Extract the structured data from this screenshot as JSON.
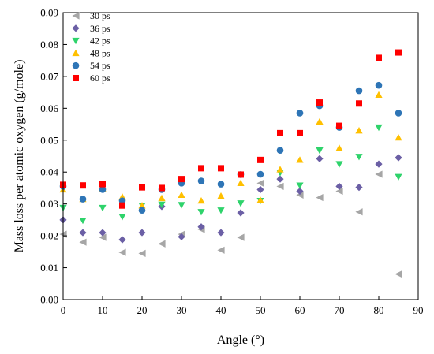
{
  "chart_data": {
    "type": "scatter",
    "title": "",
    "xlabel": "Angle (°)",
    "ylabel": "Mass loss per atomic oxygen (g/mole)",
    "xlim": [
      0,
      90
    ],
    "ylim": [
      0,
      0.09
    ],
    "xticks": [
      "0",
      "10",
      "20",
      "30",
      "40",
      "50",
      "60",
      "70",
      "80",
      "90"
    ],
    "yticks": [
      "0.00",
      "0.01",
      "0.02",
      "0.03",
      "0.04",
      "0.05",
      "0.06",
      "0.07",
      "0.08",
      "0.09"
    ],
    "grid": false,
    "legend_position": "top-left",
    "x": [
      0,
      5,
      10,
      15,
      20,
      25,
      30,
      35,
      40,
      45,
      50,
      55,
      60,
      65,
      70,
      75,
      80,
      85
    ],
    "series": [
      {
        "name": "30 ps",
        "marker": "triangle-left",
        "color": "#a6a6a6",
        "values": [
          0.0205,
          0.018,
          0.0195,
          0.0148,
          0.0145,
          0.0175,
          0.0205,
          0.022,
          0.0155,
          0.0195,
          0.0365,
          0.0355,
          0.0328,
          0.032,
          0.034,
          0.0275,
          0.0393,
          0.008
        ]
      },
      {
        "name": "36 ps",
        "marker": "diamond",
        "color": "#6b5fa5",
        "values": [
          0.025,
          0.021,
          0.021,
          0.0188,
          0.021,
          0.0292,
          0.0197,
          0.0228,
          0.021,
          0.0272,
          0.0345,
          0.0378,
          0.034,
          0.0442,
          0.0355,
          0.0352,
          0.0425,
          0.0445
        ]
      },
      {
        "name": "42 ps",
        "marker": "triangle-down",
        "color": "#2ed36b",
        "values": [
          0.0288,
          0.0248,
          0.0288,
          0.026,
          0.0295,
          0.0298,
          0.0297,
          0.0275,
          0.028,
          0.0302,
          0.031,
          0.0398,
          0.0358,
          0.0468,
          0.0425,
          0.0448,
          0.054,
          0.0385
        ]
      },
      {
        "name": "48 ps",
        "marker": "triangle-up",
        "color": "#ffc000",
        "values": [
          0.0345,
          0.0315,
          0.0348,
          0.0322,
          0.0295,
          0.0318,
          0.0328,
          0.031,
          0.0325,
          0.0365,
          0.0312,
          0.0408,
          0.0438,
          0.0558,
          0.0475,
          0.053,
          0.0642,
          0.0508
        ]
      },
      {
        "name": "54 ps",
        "marker": "circle",
        "color": "#2e75b6",
        "values": [
          0.0355,
          0.0315,
          0.0345,
          0.031,
          0.028,
          0.0345,
          0.0365,
          0.0372,
          0.0362,
          0.0392,
          0.0393,
          0.0468,
          0.0585,
          0.0608,
          0.054,
          0.0655,
          0.0672,
          0.0585
        ]
      },
      {
        "name": "60 ps",
        "marker": "square",
        "color": "#ff0000",
        "values": [
          0.036,
          0.0358,
          0.0362,
          0.0295,
          0.0352,
          0.035,
          0.0378,
          0.0412,
          0.0412,
          0.0392,
          0.0438,
          0.0522,
          0.0522,
          0.0618,
          0.0545,
          0.0615,
          0.0758,
          0.0775
        ]
      }
    ]
  }
}
